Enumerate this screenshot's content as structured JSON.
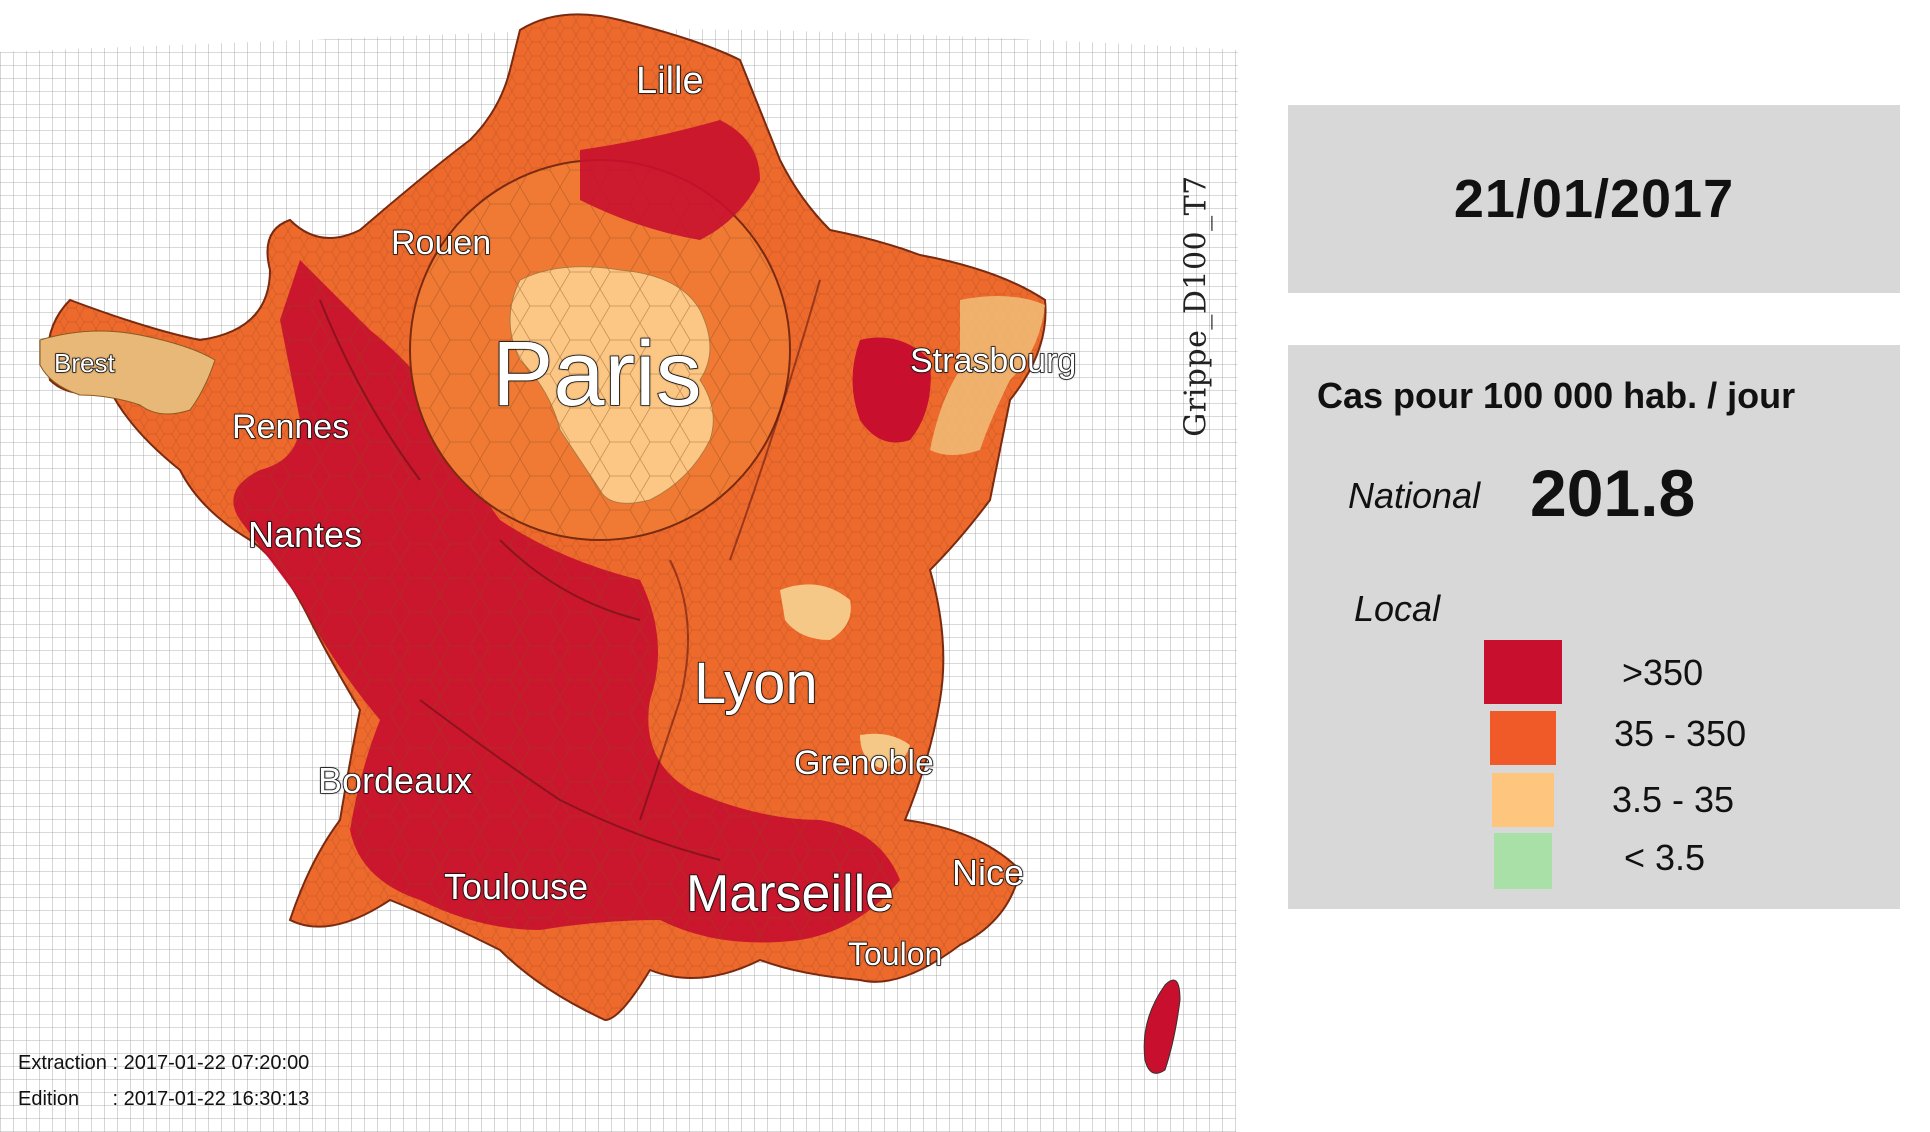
{
  "map": {
    "side_label": "Grippe_D100_T7",
    "cities": [
      {
        "id": "lille",
        "name": "Lille"
      },
      {
        "id": "rouen",
        "name": "Rouen"
      },
      {
        "id": "paris",
        "name": "Paris"
      },
      {
        "id": "strasbourg",
        "name": "Strasbourg"
      },
      {
        "id": "brest",
        "name": "Brest"
      },
      {
        "id": "rennes",
        "name": "Rennes"
      },
      {
        "id": "nantes",
        "name": "Nantes"
      },
      {
        "id": "lyon",
        "name": "Lyon"
      },
      {
        "id": "grenoble",
        "name": "Grenoble"
      },
      {
        "id": "bordeaux",
        "name": "Bordeaux"
      },
      {
        "id": "toulouse",
        "name": "Toulouse"
      },
      {
        "id": "marseille",
        "name": "Marseille"
      },
      {
        "id": "nice",
        "name": "Nice"
      },
      {
        "id": "toulon",
        "name": "Toulon"
      }
    ]
  },
  "date": "21/01/2017",
  "legend": {
    "title": "Cas pour 100 000 hab. / jour",
    "national_label": "National",
    "national_value": "201.8",
    "local_label": "Local",
    "classes": [
      {
        "label": ">350",
        "color": "#c8102e"
      },
      {
        "label": "35 - 350",
        "color": "#f05a28"
      },
      {
        "label": "3.5 - 35",
        "color": "#fdc57e"
      },
      {
        "label": "< 3.5",
        "color": "#a8e0a8"
      }
    ]
  },
  "footer": {
    "extraction": "Extraction : 2017-01-22 07:20:00",
    "edition": "Edition      : 2017-01-22 16:30:13"
  }
}
